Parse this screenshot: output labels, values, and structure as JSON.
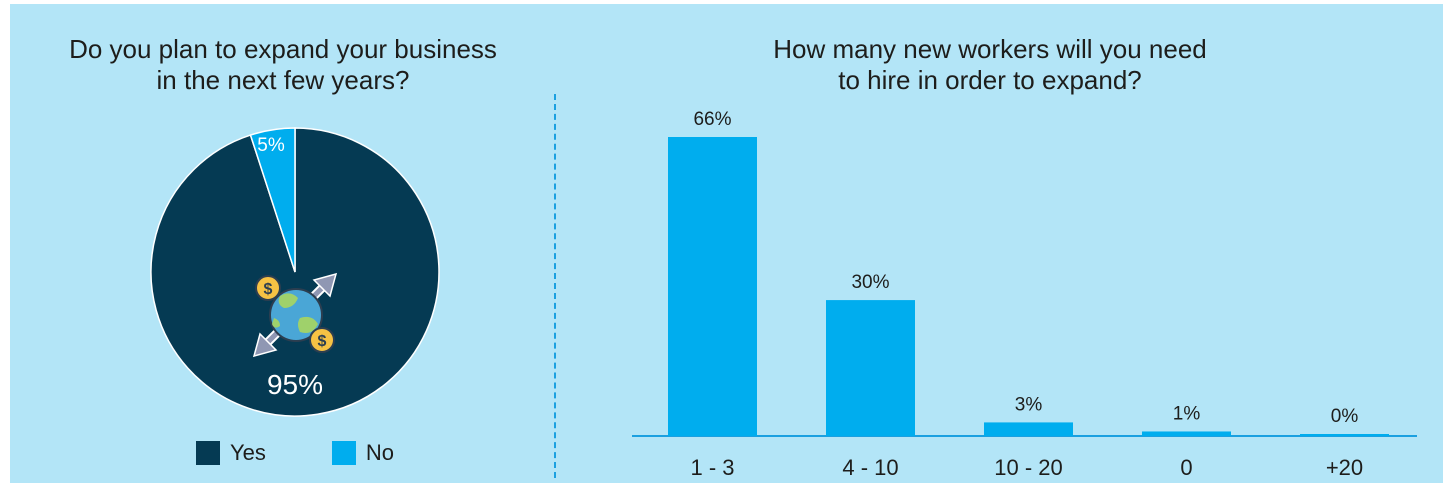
{
  "colors": {
    "background": "#b3e5f7",
    "yes": "#053a53",
    "no": "#00adee",
    "bar": "#00adee",
    "axis": "#1ba0e0"
  },
  "pie_title_lines": [
    "Do you plan to expand your business",
    "in the next few years?"
  ],
  "bar_title_lines": [
    "How many new workers will you need",
    "to hire in order to expand?"
  ],
  "legend": [
    {
      "label": "Yes",
      "color": "#053a53"
    },
    {
      "label": "No",
      "color": "#00adee"
    }
  ],
  "center_icon": "globe-expand-money-icon",
  "chart_data": [
    {
      "type": "pie",
      "title": "Do you plan to expand your business in the next few years?",
      "slices": [
        {
          "label": "Yes",
          "value": 95,
          "display": "95%"
        },
        {
          "label": "No",
          "value": 5,
          "display": "5%"
        }
      ],
      "legend_position": "bottom"
    },
    {
      "type": "bar",
      "title": "How many new workers will you need to hire in order to expand?",
      "categories": [
        "1 - 3",
        "4 - 10",
        "10 - 20",
        "0",
        "+20"
      ],
      "values": [
        66,
        30,
        3,
        1,
        0
      ],
      "value_labels": [
        "66%",
        "30%",
        "3%",
        "1%",
        "0%"
      ],
      "xlabel": "",
      "ylabel": "",
      "ylim": [
        0,
        66
      ],
      "grid": false
    }
  ]
}
